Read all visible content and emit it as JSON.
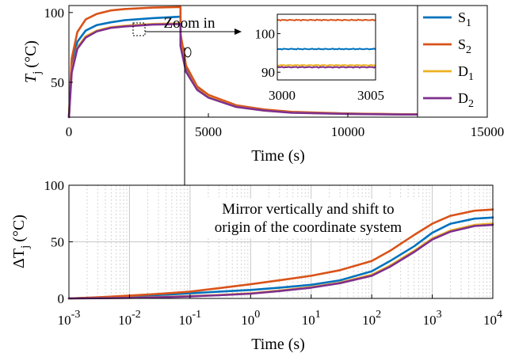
{
  "chart_data": [
    {
      "type": "line",
      "xlabel": "Time (s)",
      "ylabel": "T",
      "ylabel_sub": "j",
      "ylabel_unit": "(°C)",
      "xlim": [
        0,
        15000
      ],
      "ylim": [
        25,
        105
      ],
      "xticks": [
        0,
        5000,
        10000,
        15000
      ],
      "yticks": [
        50,
        100
      ],
      "grid": false,
      "legend": "top-right",
      "series": [
        {
          "name": "S",
          "sub": "1",
          "color": "#0072BD",
          "x": [
            0,
            100,
            300,
            600,
            1000,
            1500,
            2000,
            3000,
            4000,
            4000,
            4200,
            4600,
            5000,
            6000,
            7000,
            8000,
            10000,
            12000,
            14000
          ],
          "y": [
            25,
            62,
            79,
            87,
            91,
            93,
            94.5,
            96,
            97,
            81,
            60,
            46,
            40,
            33,
            30,
            28.5,
            27.5,
            27,
            27
          ]
        },
        {
          "name": "S",
          "sub": "2",
          "color": "#D95319",
          "x": [
            0,
            100,
            300,
            600,
            1000,
            1500,
            2000,
            3000,
            4000,
            4000,
            4200,
            4600,
            5000,
            6000,
            7000,
            8000,
            10000,
            12000,
            14000
          ],
          "y": [
            25,
            67,
            86,
            95,
            99,
            101.5,
            102.5,
            103.5,
            104,
            85,
            62,
            47,
            41,
            33.5,
            30.5,
            28.8,
            27.6,
            27.1,
            27
          ]
        },
        {
          "name": "D",
          "sub": "1",
          "color": "#EDB120",
          "x": [
            0,
            100,
            300,
            600,
            1000,
            1500,
            2000,
            3000,
            4000,
            4000,
            4200,
            4600,
            5000,
            6000,
            7000,
            8000,
            10000,
            12000,
            14000
          ],
          "y": [
            25,
            58,
            75,
            83,
            87,
            89.5,
            90.5,
            91.8,
            92.3,
            77,
            58,
            45,
            39.5,
            32.5,
            29.8,
            28.3,
            27.4,
            27,
            27
          ]
        },
        {
          "name": "D",
          "sub": "2",
          "color": "#7E2F8E",
          "x": [
            0,
            100,
            300,
            600,
            1000,
            1500,
            2000,
            3000,
            4000,
            4000,
            4200,
            4600,
            5000,
            6000,
            7000,
            8000,
            10000,
            12000,
            14000
          ],
          "y": [
            25,
            57,
            74,
            82,
            86.5,
            89,
            90,
            91.3,
            91.8,
            76,
            57.5,
            44.5,
            39,
            32.3,
            29.7,
            28.2,
            27.3,
            26.9,
            26.9
          ]
        }
      ],
      "annotations": [
        {
          "text": "Zoom in"
        }
      ]
    },
    {
      "type": "line",
      "role": "inset",
      "xlim": [
        3000,
        3005
      ],
      "ylim": [
        88,
        105
      ],
      "xticks": [
        3000,
        3005
      ],
      "yticks": [
        90,
        100
      ],
      "series": [
        {
          "color": "#0072BD",
          "y": 96
        },
        {
          "color": "#D95319",
          "y": 103.5
        },
        {
          "color": "#EDB120",
          "y": 91.8
        },
        {
          "color": "#7E2F8E",
          "y": 91.3
        }
      ]
    },
    {
      "type": "line",
      "xlabel": "Time (s)",
      "ylabel": "ΔT",
      "ylabel_sub": "j",
      "ylabel_unit": "(°C)",
      "xscale": "log",
      "xlim": [
        0.001,
        10000
      ],
      "ylim": [
        0,
        100
      ],
      "xticks": [
        0.001,
        0.01,
        0.1,
        1,
        10,
        100,
        1000,
        10000
      ],
      "xtick_labels": [
        {
          "base": "10",
          "exp": "-3"
        },
        {
          "base": "10",
          "exp": "-2"
        },
        {
          "base": "10",
          "exp": "-1"
        },
        {
          "base": "10",
          "exp": "0"
        },
        {
          "base": "10",
          "exp": "1"
        },
        {
          "base": "10",
          "exp": "2"
        },
        {
          "base": "10",
          "exp": "3"
        },
        {
          "base": "10",
          "exp": "4"
        }
      ],
      "yticks": [
        0,
        50,
        100
      ],
      "grid": true,
      "series": [
        {
          "color": "#0072BD",
          "x": [
            0.001,
            0.003,
            0.01,
            0.03,
            0.1,
            0.3,
            1,
            3,
            10,
            30,
            100,
            200,
            500,
            1000,
            2000,
            5000,
            10000
          ],
          "y": [
            0,
            0.8,
            2,
            3,
            4.5,
            6,
            7.5,
            9.5,
            12,
            16,
            24,
            33,
            46,
            58,
            66,
            70.5,
            71.5
          ]
        },
        {
          "color": "#D95319",
          "x": [
            0.001,
            0.003,
            0.01,
            0.03,
            0.1,
            0.3,
            1,
            3,
            10,
            30,
            100,
            200,
            500,
            1000,
            2000,
            5000,
            10000
          ],
          "y": [
            0,
            1,
            2.5,
            4,
            6,
            9,
            12.5,
            16,
            20,
            25,
            33,
            42,
            56,
            66,
            73,
            77.5,
            78.5
          ]
        },
        {
          "color": "#EDB120",
          "x": [
            0.001,
            0.003,
            0.01,
            0.03,
            0.1,
            0.3,
            1,
            3,
            10,
            30,
            100,
            200,
            500,
            1000,
            2000,
            5000,
            10000
          ],
          "y": [
            0,
            0.3,
            0.7,
            1.2,
            2,
            3,
            4.5,
            7,
            10,
            14,
            21,
            29,
            42,
            53,
            60,
            65,
            66
          ]
        },
        {
          "color": "#7E2F8E",
          "x": [
            0.001,
            0.003,
            0.01,
            0.03,
            0.1,
            0.3,
            1,
            3,
            10,
            30,
            100,
            200,
            500,
            1000,
            2000,
            5000,
            10000
          ],
          "y": [
            0,
            0.2,
            0.5,
            1,
            1.8,
            2.8,
            4.2,
            6.5,
            9.5,
            13.5,
            20,
            28,
            41,
            52,
            59,
            64,
            65
          ]
        }
      ],
      "annotations": [
        {
          "text": "Mirror vertically and shift to"
        },
        {
          "text": "origin of the coordinate system"
        }
      ]
    }
  ]
}
